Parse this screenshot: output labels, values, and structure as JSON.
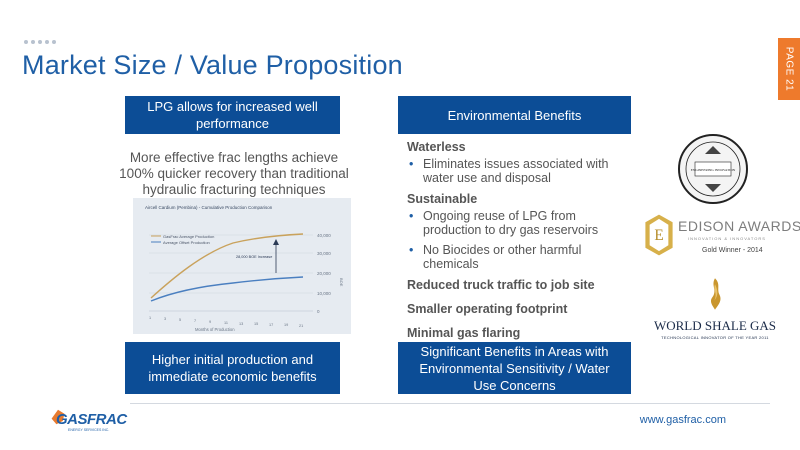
{
  "slide": {
    "title": "Market Size / Value Proposition",
    "page_label": "PAGE 21",
    "url": "www.gasfrac.com",
    "accent_color": "#0c4d96",
    "tab_color": "#ee7a2c"
  },
  "left": {
    "header": "LPG allows for increased well performance",
    "lead": "More effective frac lengths achieve 100% quicker recovery than traditional hydraulic fracturing techniques",
    "footer": "Higher initial production and immediate economic benefits"
  },
  "chart": {
    "title": "Aircell Cardium (Pembina) - Cumulative Production Comparison",
    "legend": [
      "GasFrac Average Production",
      "Average Offset Production"
    ],
    "annotation": "28,000 BOE Increase",
    "xlabel": "Months of Production",
    "ylabel": "BOE",
    "yticks": [
      "40,000",
      "30,000",
      "20,000",
      "10,000",
      "0"
    ],
    "xticks": [
      "1",
      "3",
      "5",
      "7",
      "9",
      "11",
      "13",
      "15",
      "17",
      "19",
      "21"
    ]
  },
  "right": {
    "header": "Environmental Benefits",
    "groups": [
      {
        "heading": "Waterless",
        "bullets": [
          "Eliminates issues associated with water use and disposal"
        ]
      },
      {
        "heading": "Sustainable",
        "bullets": [
          "Ongoing reuse of LPG from production to dry gas reservoirs",
          "No Biocides or other harmful chemicals"
        ]
      }
    ],
    "items": [
      "Reduced truck traffic to job site",
      "Smaller operating footprint",
      "Minimal gas flaring"
    ],
    "footer": "Significant Benefits in Areas with Environmental Sensitivity / Water Use Concerns"
  },
  "awards": {
    "edison": "EDISON AWARDS",
    "edison_sub": "INNOVATION & INNOVATORS",
    "edison_gold": "Gold Winner - 2014",
    "wsg": "WORLD SHALE GAS",
    "wsg_sub": "TECHNOLOGICAL INNOVATOR OF THE YEAR 2011",
    "seal": "ENGINEERING INNOVATION"
  },
  "logo": {
    "name": "GASFRAC",
    "tagline": "ENERGY SERVICES INC."
  }
}
